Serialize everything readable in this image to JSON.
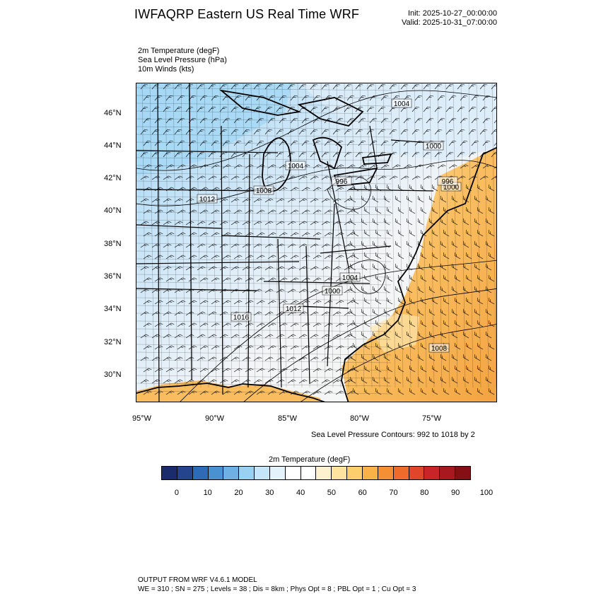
{
  "header": {
    "title": "IWFAQRP Eastern US Real Time WRF",
    "init": "Init: 2025-10-27_00:00:00",
    "valid": "Valid: 2025-10-31_07:00:00"
  },
  "fields": [
    "2m Temperature   (degF)",
    "Sea Level Pressure   (hPa)",
    "10m Winds   (kts)"
  ],
  "map": {
    "lat_labels": [
      "46°N",
      "44°N",
      "42°N",
      "40°N",
      "38°N",
      "36°N",
      "34°N",
      "32°N",
      "30°N"
    ],
    "lon_labels": [
      "95°W",
      "90°W",
      "85°W",
      "80°W",
      "75°W"
    ],
    "isobar_labels": [
      "1004",
      "1000",
      "1004",
      "996",
      "1000",
      "1008",
      "1012",
      "996",
      "1004",
      "1000",
      "1012",
      "1016",
      "1008"
    ],
    "colors": {
      "cold": "#a6d8f5",
      "cool": "#dcecf8",
      "neutral": "#f4f6f7",
      "warm_light": "#fde6ac",
      "warm": "#f9bd60",
      "hot": "#f4a340"
    }
  },
  "contour_note": "Sea Level Pressure Contours: 992 to 1018 by 2",
  "colorbar": {
    "title": "2m Temperature  (degF)",
    "colors": [
      "#1b2c6b",
      "#24458d",
      "#2e6bb6",
      "#4a91d1",
      "#6fb0e4",
      "#9ad0f2",
      "#c5e5f8",
      "#e4f2fb",
      "#ffffff",
      "#ffffff",
      "#fdf1cf",
      "#fde39e",
      "#fccf6d",
      "#f9b247",
      "#f48f33",
      "#ee6b2b",
      "#e0462a",
      "#c8252a",
      "#a8191f",
      "#841015"
    ],
    "labels": [
      "0",
      "10",
      "20",
      "30",
      "40",
      "50",
      "60",
      "70",
      "80",
      "90",
      "100"
    ]
  },
  "footer": {
    "line1": "OUTPUT FROM WRF V4.6.1 MODEL",
    "line2": "WE = 310 ; SN = 275 ; Levels = 38 ; Dis = 8km ; Phys Opt = 8 ; PBL Opt = 1 ; Cu Opt = 3"
  }
}
